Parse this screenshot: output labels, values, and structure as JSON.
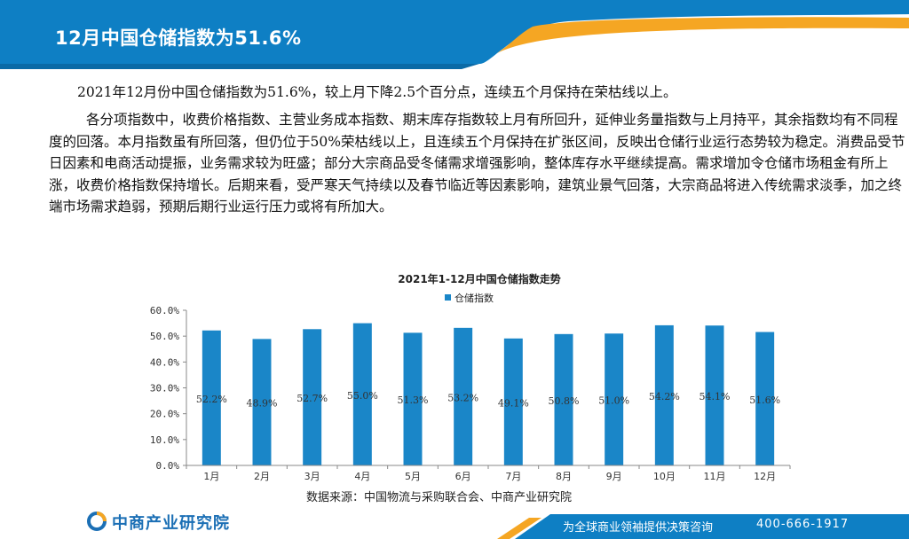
{
  "header": {
    "title": "12月中国仓储指数为51.6%"
  },
  "paragraphs": [
    "2021年12月份中国仓储指数为51.6%，较上月下降2.5个百分点，连续五个月保持在荣枯线以上。",
    "各分项指数中，收费价格指数、主营业务成本指数、期末库存指数较上月有所回升，延伸业务量指数与上月持平，其余指数均有不同程度的回落。本月指数虽有所回落，但仍位于50%荣枯线以上，且连续五个月保持在扩张区间，反映出仓储行业运行态势较为稳定。消费品受节日因素和电商活动提振，业务需求较为旺盛；部分大宗商品受冬储需求增强影响，整体库存水平继续提高。需求增加令仓储市场租金有所上涨，收费价格指数保持增长。后期来看，受严寒天气持续以及春节临近等因素影响，建筑业景气回落，大宗商品将进入传统需求淡季，加之终端市场需求趋弱，预期后期行业运行压力或将有所加大。"
  ],
  "chart_data": {
    "type": "bar",
    "title": "2021年1-12月中国仓储指数走势",
    "legend": "仓储指数",
    "categories": [
      "1月",
      "2月",
      "3月",
      "4月",
      "5月",
      "6月",
      "7月",
      "8月",
      "9月",
      "10月",
      "11月",
      "12月"
    ],
    "values": [
      52.2,
      48.9,
      52.7,
      55.0,
      51.3,
      53.2,
      49.1,
      50.8,
      51.0,
      54.2,
      54.1,
      51.6
    ],
    "value_labels": [
      "52.2%",
      "48.9%",
      "52.7%",
      "55.0%",
      "51.3%",
      "53.2%",
      "49.1%",
      "50.8%",
      "51.0%",
      "54.2%",
      "54.1%",
      "51.6%"
    ],
    "yticks": [
      "0.0%",
      "10.0%",
      "20.0%",
      "30.0%",
      "40.0%",
      "50.0%",
      "60.0%"
    ],
    "ylim": [
      0,
      60
    ],
    "xlabel": "",
    "ylabel": "",
    "source": "数据来源：中国物流与采购联合会、中商产业研究院"
  },
  "footer": {
    "logo": "中商产业研究院",
    "slogan": "为全球商业领袖提供决策咨询",
    "phone": "400-666-1917"
  },
  "colors": {
    "brand_blue": "#0e7fc4",
    "accent_orange": "#f5a623",
    "bar": "#1a86c8"
  }
}
